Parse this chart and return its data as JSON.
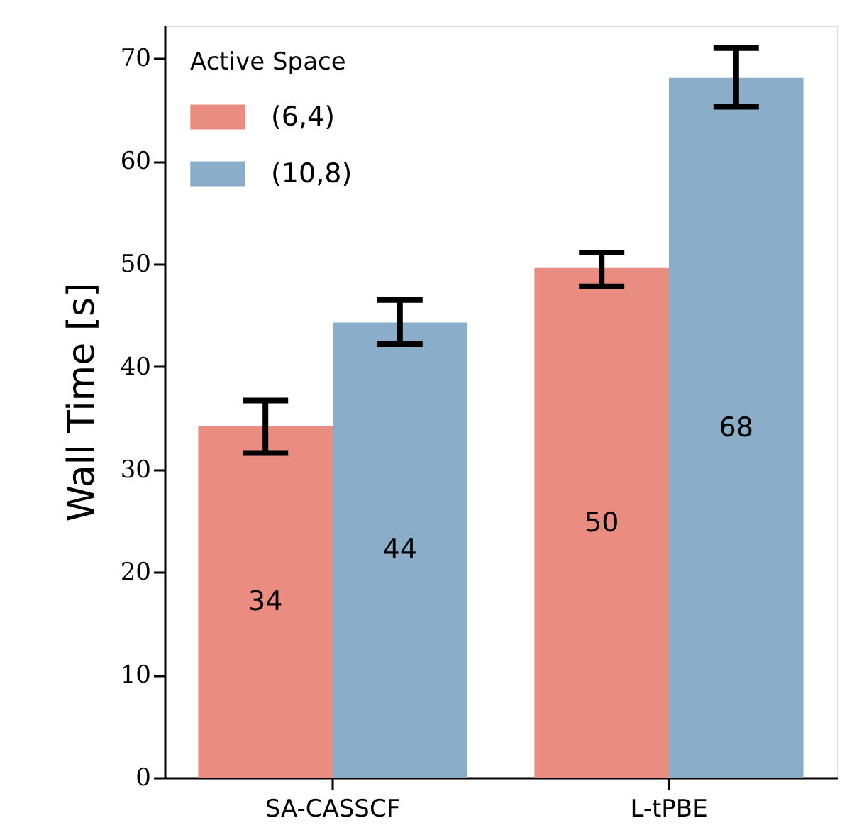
{
  "chart_data": {
    "type": "bar",
    "ylabel": "Wall Time [s]",
    "legend_title": "Active Space",
    "legend": "top left",
    "categories": [
      "SA-CASSCF",
      "L-tPBE"
    ],
    "ylim": [
      0,
      73.2
    ],
    "yticks": [
      0,
      10,
      20,
      30,
      40,
      50,
      60,
      70
    ],
    "series": [
      {
        "name": "(6,4)",
        "color": "#eb8c80",
        "values": [
          34.2,
          49.6
        ],
        "errors": [
          [
            31.6,
            36.7
          ],
          [
            47.8,
            51.1
          ]
        ],
        "value_labels": [
          "34",
          "50"
        ]
      },
      {
        "name": "(10,8)",
        "color": "#8aadc9",
        "values": [
          44.3,
          68.1
        ],
        "errors": [
          [
            42.2,
            46.5
          ],
          [
            65.3,
            71.0
          ]
        ],
        "value_labels": [
          "44",
          "68"
        ]
      }
    ]
  }
}
